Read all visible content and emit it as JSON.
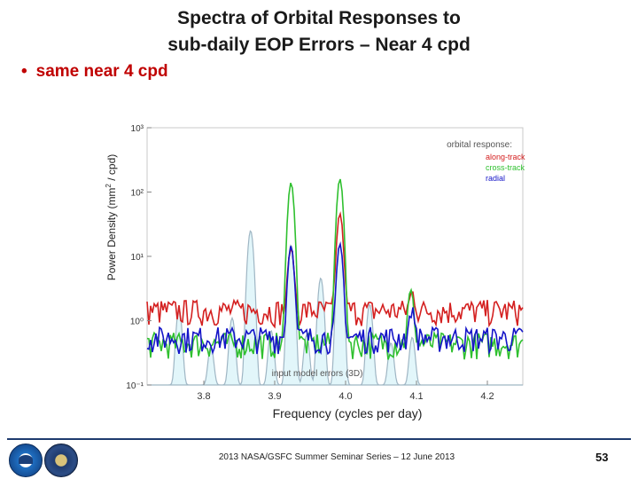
{
  "slide": {
    "title_line1": "Spectra of Orbital Responses to",
    "title_line2": "sub-daily EOP Errors – Near 4 cpd",
    "bullet": "same near 4 cpd",
    "footer": "2013 NASA/GSFC Summer Seminar Series – 12 June 2013",
    "page_number": "53"
  },
  "chart_data": {
    "type": "line",
    "xlabel": "Frequency (cycles per day)",
    "ylabel_main": "Power Density  (mm",
    "ylabel_sup": "2",
    "ylabel_tail": " / cpd)",
    "scale_y": "log",
    "xlim": [
      3.72,
      4.25
    ],
    "ylim": [
      0.1,
      1000
    ],
    "x_ticks": [
      3.8,
      3.9,
      4.0,
      4.1,
      4.2
    ],
    "x_tick_labels": [
      "3.8",
      "3.9",
      "4.0",
      "4.1",
      "4.2"
    ],
    "y_ticks": [
      0.1,
      1,
      10,
      100,
      1000
    ],
    "y_tick_labels": [
      "10⁻¹",
      "10⁰",
      "10¹",
      "10²",
      "10³"
    ],
    "legend_title": "orbital response:",
    "legend_position": "top-right",
    "input_label": "input model errors (3D)",
    "series": [
      {
        "name": "along-track",
        "color": "#d42020",
        "peaks": [
          [
            3.923,
            12
          ],
          [
            3.992,
            45
          ],
          [
            4.094,
            1.3
          ]
        ],
        "baseline": 1.45
      },
      {
        "name": "cross-track",
        "color": "#2fc02f",
        "peaks": [
          [
            3.923,
            140
          ],
          [
            3.992,
            160
          ],
          [
            4.092,
            2.5
          ]
        ],
        "baseline": 0.45
      },
      {
        "name": "radial",
        "color": "#1515c8",
        "peaks": [
          [
            3.923,
            14
          ],
          [
            3.992,
            15
          ],
          [
            4.094,
            0.9
          ]
        ],
        "baseline": 0.55
      },
      {
        "name": "input model errors (3D)",
        "color": "#9fb6c4",
        "fill": "#e2f6fa",
        "peaks": [
          [
            3.765,
            1.4
          ],
          [
            3.81,
            0.3
          ],
          [
            3.84,
            1.0
          ],
          [
            3.866,
            25
          ],
          [
            3.895,
            0.6
          ],
          [
            3.923,
            15
          ],
          [
            3.945,
            0.5
          ],
          [
            3.965,
            4.5
          ],
          [
            3.992,
            15
          ],
          [
            4.034,
            1.7
          ],
          [
            4.064,
            0.35
          ],
          [
            4.094,
            0.45
          ]
        ],
        "baseline": 0.1
      }
    ]
  }
}
